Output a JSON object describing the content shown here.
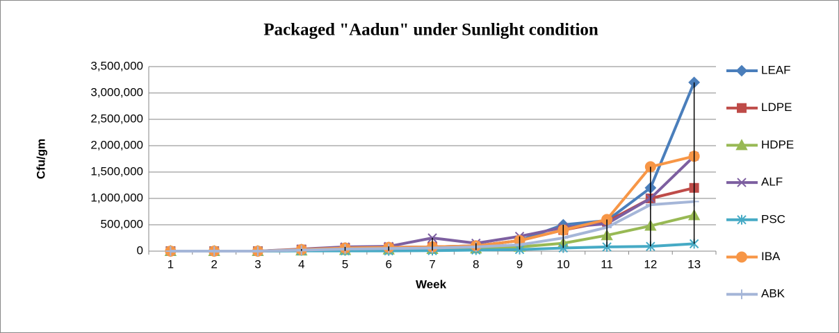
{
  "chart_data": {
    "type": "line",
    "title": "Packaged \"Aadun\" under Sunlight condition",
    "x_label": "Week",
    "y_label": "Cfu/gm",
    "categories": [
      "1",
      "2",
      "3",
      "4",
      "5",
      "6",
      "7",
      "8",
      "9",
      "10",
      "11",
      "12",
      "13"
    ],
    "ylim": [
      0,
      3500000
    ],
    "yticks": [
      0,
      {
        "value": 500000,
        "label": "500,000"
      },
      {
        "value": 1000000,
        "label": "1,000,000"
      },
      {
        "value": 1500000,
        "label": "1,500,000"
      },
      {
        "value": 2000000,
        "label": "2,000,000"
      },
      {
        "value": 2500000,
        "label": "2,500,000"
      },
      {
        "value": 3000000,
        "label": "3,000,000"
      },
      {
        "value": 3500000,
        "label": "3,500,000"
      }
    ],
    "grid": true,
    "legend": "right",
    "high_low_lines": true,
    "series": [
      {
        "name": "LEAF",
        "color": "#4a7ebb",
        "marker": "diamond",
        "values": [
          0,
          0,
          0,
          30000,
          60000,
          70000,
          80000,
          100000,
          200000,
          500000,
          580000,
          1200000,
          3200000
        ]
      },
      {
        "name": "LDPE",
        "color": "#be4b48",
        "marker": "square",
        "values": [
          0,
          0,
          0,
          30000,
          60000,
          70000,
          80000,
          100000,
          200000,
          400000,
          560000,
          1000000,
          1200000
        ]
      },
      {
        "name": "HDPE",
        "color": "#98b954",
        "marker": "triangle",
        "values": [
          0,
          0,
          0,
          10000,
          20000,
          30000,
          40000,
          50000,
          80000,
          150000,
          300000,
          480000,
          680000
        ]
      },
      {
        "name": "ALF",
        "color": "#7d5fa0",
        "marker": "x",
        "values": [
          0,
          0,
          0,
          40000,
          80000,
          90000,
          250000,
          150000,
          280000,
          450000,
          520000,
          1000000,
          1800000
        ]
      },
      {
        "name": "PSC",
        "color": "#46aac5",
        "marker": "star",
        "values": [
          0,
          0,
          0,
          5000,
          5000,
          5000,
          10000,
          20000,
          30000,
          60000,
          80000,
          90000,
          140000
        ]
      },
      {
        "name": "IBA",
        "color": "#f79646",
        "marker": "circle",
        "values": [
          0,
          0,
          0,
          30000,
          60000,
          70000,
          80000,
          100000,
          200000,
          400000,
          600000,
          1600000,
          1800000
        ]
      },
      {
        "name": "ABK",
        "color": "#a5b6d8",
        "marker": "plus",
        "values": [
          0,
          0,
          0,
          20000,
          40000,
          50000,
          60000,
          80000,
          120000,
          250000,
          450000,
          880000,
          940000
        ]
      }
    ]
  }
}
